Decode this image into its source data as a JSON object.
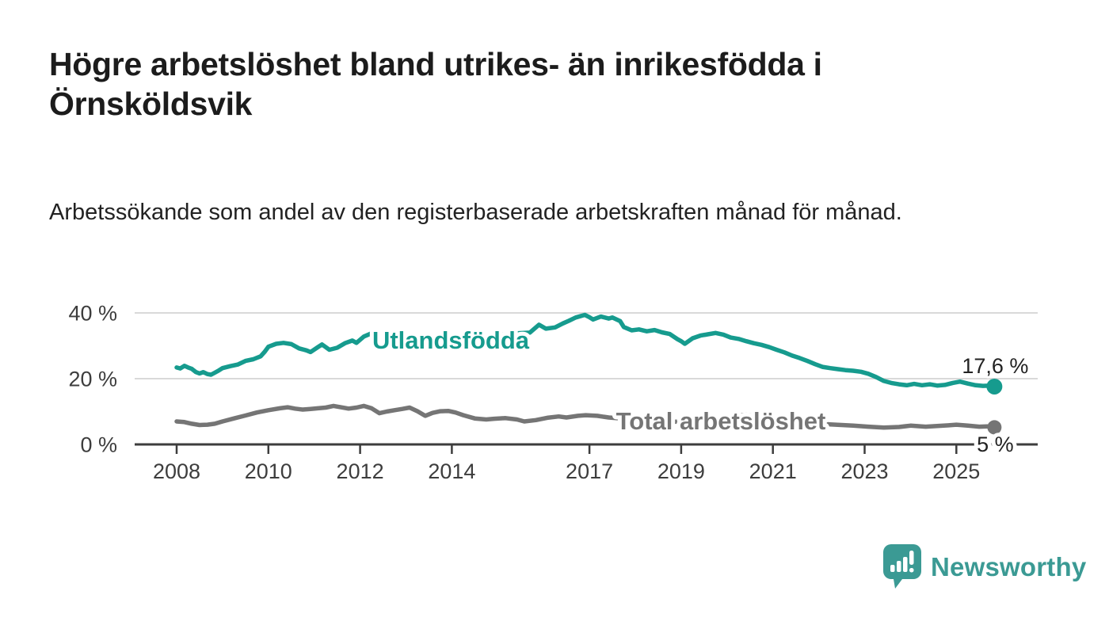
{
  "header": {
    "title": "Högre arbetslöshet bland utrikes- än inrikesfödda i Örnsköldsvik",
    "subtitle": "Arbetssökande som andel av den registerbaserade arbetskraften månad för månad."
  },
  "branding": {
    "logo_text": "Newsworthy",
    "logo_icon": "bar-chart-speech-bubble",
    "logo_color": "#3b9a94"
  },
  "colors": {
    "series_utlandsfodda": "#169b8e",
    "series_total": "#757575",
    "axis": "#3d3d3d",
    "gridline": "#d9d9d9",
    "text_dark": "#222222"
  },
  "chart_data": {
    "type": "line",
    "title": "Högre arbetslöshet bland utrikes- än inrikesfödda i Örnsköldsvik",
    "subtitle": "Arbetssökande som andel av den registerbaserade arbetskraften månad för månad.",
    "grid": "horizontal-only",
    "legend_position": "inline-labels",
    "x_axis": {
      "ticks": [
        2008,
        2010,
        2012,
        2014,
        2017,
        2019,
        2021,
        2023,
        2025
      ],
      "tick_labels": [
        "2008",
        "2010",
        "2012",
        "2014",
        "2017",
        "2019",
        "2021",
        "2023",
        "2025"
      ],
      "range": [
        2007.1,
        2026.8
      ]
    },
    "y_axis": {
      "ticks": [
        0,
        20,
        40
      ],
      "tick_labels": [
        "0 %",
        "20 %",
        "40 %"
      ],
      "range": [
        0,
        42
      ],
      "unit": "%"
    },
    "series": [
      {
        "name": "Utlandsfödda",
        "color": "#169b8e",
        "end_label": "17,6 %",
        "end_value": 17.6,
        "points": [
          [
            2008.0,
            23.4
          ],
          [
            2008.08,
            23.1
          ],
          [
            2008.17,
            23.9
          ],
          [
            2008.25,
            23.4
          ],
          [
            2008.33,
            23.0
          ],
          [
            2008.42,
            22.0
          ],
          [
            2008.5,
            21.6
          ],
          [
            2008.58,
            22.0
          ],
          [
            2008.67,
            21.4
          ],
          [
            2008.75,
            21.2
          ],
          [
            2008.83,
            21.8
          ],
          [
            2008.92,
            22.5
          ],
          [
            2009.0,
            23.2
          ],
          [
            2009.17,
            23.8
          ],
          [
            2009.33,
            24.3
          ],
          [
            2009.5,
            25.4
          ],
          [
            2009.67,
            25.9
          ],
          [
            2009.83,
            26.8
          ],
          [
            2009.92,
            28.2
          ],
          [
            2010.0,
            29.7
          ],
          [
            2010.17,
            30.6
          ],
          [
            2010.33,
            30.9
          ],
          [
            2010.5,
            30.5
          ],
          [
            2010.67,
            29.2
          ],
          [
            2010.83,
            28.6
          ],
          [
            2010.92,
            28.1
          ],
          [
            2011.08,
            29.6
          ],
          [
            2011.17,
            30.4
          ],
          [
            2011.33,
            28.8
          ],
          [
            2011.5,
            29.4
          ],
          [
            2011.67,
            30.8
          ],
          [
            2011.83,
            31.6
          ],
          [
            2011.92,
            30.9
          ],
          [
            2012.08,
            32.8
          ],
          [
            2012.25,
            33.8
          ],
          [
            2012.42,
            33.4
          ],
          [
            2012.58,
            33.0
          ],
          [
            2012.75,
            32.5
          ],
          [
            2012.92,
            32.9
          ],
          [
            2013.08,
            32.4
          ],
          [
            2013.25,
            32.0
          ],
          [
            2013.42,
            31.7
          ],
          [
            2013.58,
            32.1
          ],
          [
            2013.75,
            31.6
          ],
          [
            2013.92,
            31.9
          ],
          [
            2014.08,
            31.5
          ],
          [
            2014.25,
            31.9
          ],
          [
            2014.42,
            32.4
          ],
          [
            2014.58,
            32.1
          ],
          [
            2014.75,
            32.7
          ],
          [
            2014.92,
            33.1
          ],
          [
            2015.08,
            33.5
          ],
          [
            2015.25,
            33.2
          ],
          [
            2015.42,
            33.8
          ],
          [
            2015.58,
            33.9
          ],
          [
            2015.7,
            34.0
          ],
          [
            2015.9,
            36.4
          ],
          [
            2016.05,
            35.2
          ],
          [
            2016.25,
            35.6
          ],
          [
            2016.42,
            36.8
          ],
          [
            2016.55,
            37.6
          ],
          [
            2016.7,
            38.6
          ],
          [
            2016.9,
            39.4
          ],
          [
            2017.0,
            38.7
          ],
          [
            2017.08,
            38.0
          ],
          [
            2017.25,
            38.9
          ],
          [
            2017.42,
            38.3
          ],
          [
            2017.5,
            38.6
          ],
          [
            2017.67,
            37.5
          ],
          [
            2017.75,
            35.7
          ],
          [
            2017.92,
            34.7
          ],
          [
            2018.08,
            35.0
          ],
          [
            2018.25,
            34.4
          ],
          [
            2018.42,
            34.8
          ],
          [
            2018.58,
            34.1
          ],
          [
            2018.75,
            33.6
          ],
          [
            2018.92,
            32.0
          ],
          [
            2019.0,
            31.4
          ],
          [
            2019.08,
            30.6
          ],
          [
            2019.25,
            32.3
          ],
          [
            2019.42,
            33.1
          ],
          [
            2019.58,
            33.5
          ],
          [
            2019.75,
            33.9
          ],
          [
            2019.92,
            33.4
          ],
          [
            2020.08,
            32.5
          ],
          [
            2020.25,
            32.1
          ],
          [
            2020.42,
            31.4
          ],
          [
            2020.58,
            30.8
          ],
          [
            2020.75,
            30.3
          ],
          [
            2020.92,
            29.6
          ],
          [
            2021.08,
            28.8
          ],
          [
            2021.25,
            28.0
          ],
          [
            2021.42,
            27.0
          ],
          [
            2021.58,
            26.3
          ],
          [
            2021.75,
            25.4
          ],
          [
            2021.92,
            24.4
          ],
          [
            2022.08,
            23.6
          ],
          [
            2022.25,
            23.2
          ],
          [
            2022.42,
            22.9
          ],
          [
            2022.58,
            22.6
          ],
          [
            2022.75,
            22.4
          ],
          [
            2022.92,
            22.1
          ],
          [
            2023.08,
            21.5
          ],
          [
            2023.25,
            20.5
          ],
          [
            2023.42,
            19.3
          ],
          [
            2023.58,
            18.7
          ],
          [
            2023.75,
            18.3
          ],
          [
            2023.92,
            18.0
          ],
          [
            2024.08,
            18.4
          ],
          [
            2024.25,
            18.0
          ],
          [
            2024.42,
            18.3
          ],
          [
            2024.58,
            17.9
          ],
          [
            2024.75,
            18.1
          ],
          [
            2024.92,
            18.7
          ],
          [
            2025.08,
            19.1
          ],
          [
            2025.25,
            18.5
          ],
          [
            2025.42,
            18.0
          ],
          [
            2025.58,
            17.8
          ],
          [
            2025.75,
            17.9
          ],
          [
            2025.83,
            17.6
          ]
        ]
      },
      {
        "name": "Total arbetslöshet",
        "color": "#757575",
        "end_label": "5 %",
        "end_value": 5,
        "points": [
          [
            2008.0,
            7.0
          ],
          [
            2008.17,
            6.8
          ],
          [
            2008.33,
            6.3
          ],
          [
            2008.5,
            5.9
          ],
          [
            2008.67,
            6.0
          ],
          [
            2008.83,
            6.3
          ],
          [
            2009.0,
            7.0
          ],
          [
            2009.25,
            7.9
          ],
          [
            2009.5,
            8.8
          ],
          [
            2009.75,
            9.7
          ],
          [
            2010.0,
            10.4
          ],
          [
            2010.25,
            11.0
          ],
          [
            2010.42,
            11.3
          ],
          [
            2010.58,
            10.9
          ],
          [
            2010.75,
            10.6
          ],
          [
            2010.92,
            10.8
          ],
          [
            2011.08,
            11.0
          ],
          [
            2011.25,
            11.2
          ],
          [
            2011.42,
            11.7
          ],
          [
            2011.58,
            11.3
          ],
          [
            2011.75,
            10.9
          ],
          [
            2011.92,
            11.2
          ],
          [
            2012.08,
            11.7
          ],
          [
            2012.25,
            11.0
          ],
          [
            2012.42,
            9.5
          ],
          [
            2012.58,
            10.0
          ],
          [
            2012.75,
            10.4
          ],
          [
            2012.92,
            10.8
          ],
          [
            2013.08,
            11.2
          ],
          [
            2013.25,
            10.1
          ],
          [
            2013.42,
            8.7
          ],
          [
            2013.58,
            9.6
          ],
          [
            2013.75,
            10.1
          ],
          [
            2013.92,
            10.2
          ],
          [
            2014.08,
            9.7
          ],
          [
            2014.25,
            8.9
          ],
          [
            2014.5,
            7.9
          ],
          [
            2014.75,
            7.6
          ],
          [
            2014.92,
            7.8
          ],
          [
            2015.17,
            8.0
          ],
          [
            2015.42,
            7.6
          ],
          [
            2015.58,
            7.0
          ],
          [
            2015.83,
            7.4
          ],
          [
            2016.08,
            8.1
          ],
          [
            2016.33,
            8.5
          ],
          [
            2016.5,
            8.2
          ],
          [
            2016.75,
            8.7
          ],
          [
            2016.92,
            8.9
          ],
          [
            2017.17,
            8.7
          ],
          [
            2017.42,
            8.2
          ],
          [
            2017.58,
            8.0
          ],
          [
            2017.92,
            7.6
          ],
          [
            2018.25,
            7.2
          ],
          [
            2018.58,
            7.0
          ],
          [
            2018.92,
            6.9
          ],
          [
            2019.25,
            6.9
          ],
          [
            2019.58,
            7.1
          ],
          [
            2019.92,
            7.7
          ],
          [
            2020.17,
            8.7
          ],
          [
            2020.42,
            9.0
          ],
          [
            2020.67,
            8.6
          ],
          [
            2020.92,
            8.1
          ],
          [
            2021.25,
            7.5
          ],
          [
            2021.58,
            6.9
          ],
          [
            2021.92,
            6.4
          ],
          [
            2022.25,
            6.1
          ],
          [
            2022.5,
            5.9
          ],
          [
            2022.75,
            5.7
          ],
          [
            2023.08,
            5.4
          ],
          [
            2023.42,
            5.1
          ],
          [
            2023.75,
            5.3
          ],
          [
            2024.0,
            5.7
          ],
          [
            2024.33,
            5.4
          ],
          [
            2024.58,
            5.6
          ],
          [
            2024.83,
            5.8
          ],
          [
            2025.0,
            6.0
          ],
          [
            2025.25,
            5.7
          ],
          [
            2025.5,
            5.4
          ],
          [
            2025.67,
            5.5
          ],
          [
            2025.83,
            5.2
          ]
        ]
      }
    ]
  }
}
